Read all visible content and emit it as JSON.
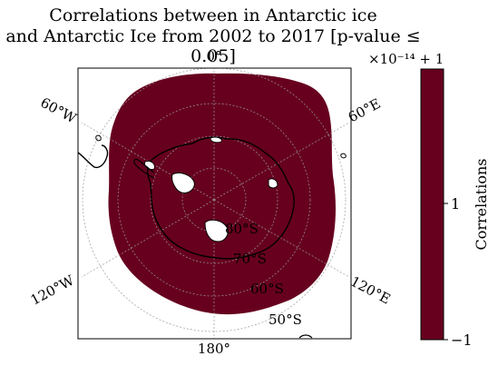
{
  "title_line1": "Correlations between in Antarctic ice",
  "title_line2": "and Antarctic Ice from 2002 to 2017 [p-value ≤ 0.05]",
  "meridian_labels": {
    "top": "0°",
    "bottom": "180°",
    "upper_left": "60°W",
    "upper_right": "60°E",
    "lower_left": "120°W",
    "lower_right": "120°E"
  },
  "latitude_labels": [
    "80°S",
    "70°S",
    "60°S",
    "50°S"
  ],
  "colorbar": {
    "label": "Correlations",
    "offset_text": "×10⁻¹⁴ + 1",
    "ticks": [
      "1",
      "−1"
    ],
    "color": "#67001f"
  },
  "colors": {
    "field": "#67001f",
    "coastline": "#000000",
    "land": "#ffffff"
  }
}
